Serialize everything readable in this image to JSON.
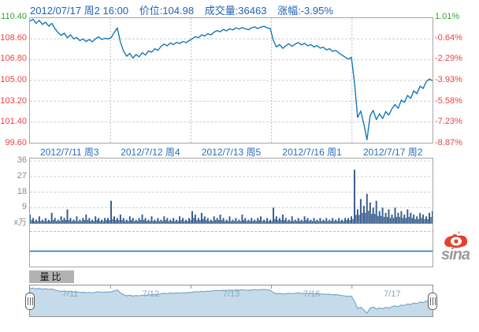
{
  "header": {
    "datetime": "2012/07/17 周2 16:00",
    "price": "价位:104.98",
    "volume": "成交量:36463",
    "change": "涨幅:-3.95%"
  },
  "main_chart": {
    "left_labels": [
      "110.40",
      "108.60",
      "106.80",
      "105.00",
      "103.20",
      "101.40",
      "99.60"
    ],
    "right_labels": [
      "1.01%",
      "-0.64%",
      "-2.29%",
      "-3.93%",
      "-5.58%",
      "-7.23%",
      "-8.87%"
    ],
    "x_labels": [
      "2012/7/11 周3",
      "2012/7/12 周4",
      "2012/7/13 周5",
      "2012/7/16 周1",
      "2012/7/17 周2"
    ]
  },
  "volume_chart": {
    "y_labels": [
      "36",
      "27",
      "18",
      "9"
    ],
    "y_values": [
      36,
      27,
      18,
      9
    ],
    "unit_label": "x万"
  },
  "tab": {
    "label": "量比"
  },
  "navigator": {
    "labels": [
      "7/11",
      "7/12",
      "7/13",
      "7/16",
      "7/17"
    ]
  },
  "logo": {
    "text": "sina"
  },
  "colors": {
    "header_text": "#1f62b8",
    "up_green": "#2ea82e",
    "down_red": "#e84444",
    "price_line": "#1478b8",
    "volume_bar": "#3a5f8e",
    "date_blue": "#2a6db8",
    "grid": "#cfcfcf",
    "nav_fill": "#c6dbea",
    "nav_line": "#76a9cc",
    "nav_label": "#8aa6bd",
    "tab_bg": "#b2b2b2"
  },
  "chart_data": [
    {
      "type": "line",
      "name": "price",
      "title": "2012/07/17 周2 16:00 价位:104.98 成交量:36463 涨幅:-3.95%",
      "x_categories": [
        "2012/7/11 周3",
        "2012/7/12 周4",
        "2012/7/13 周5",
        "2012/7/16 周1",
        "2012/7/17 周2"
      ],
      "points_per_day": 26,
      "ylim": [
        99.6,
        110.4
      ],
      "yticks_left": [
        110.4,
        108.6,
        106.8,
        105.0,
        103.2,
        101.4,
        99.6
      ],
      "yticks_right_pct": [
        1.01,
        -0.64,
        -2.29,
        -3.93,
        -5.58,
        -7.23,
        -8.87
      ],
      "last_price": 104.98,
      "change_pct": -3.95,
      "values": [
        110.15,
        110.3,
        109.95,
        110.2,
        109.85,
        110.05,
        109.7,
        109.95,
        109.5,
        109.15,
        108.9,
        109.1,
        108.7,
        108.95,
        108.6,
        108.72,
        108.45,
        108.6,
        108.38,
        108.55,
        108.35,
        108.6,
        108.78,
        108.55,
        108.65,
        108.6,
        108.7,
        109.15,
        109.55,
        108.3,
        107.55,
        107.1,
        107.35,
        106.95,
        107.25,
        107.05,
        107.4,
        107.2,
        107.55,
        107.45,
        107.75,
        107.6,
        107.95,
        108.15,
        108.0,
        108.25,
        108.1,
        108.3,
        108.2,
        108.38,
        108.28,
        108.45,
        108.6,
        108.8,
        108.7,
        108.95,
        108.85,
        109.05,
        108.95,
        109.18,
        109.32,
        109.22,
        109.42,
        109.3,
        109.48,
        109.38,
        109.55,
        109.45,
        109.58,
        109.48,
        109.4,
        109.55,
        109.65,
        109.5,
        109.62,
        109.7,
        109.55,
        109.5,
        108.45,
        107.9,
        108.12,
        107.78,
        108.0,
        108.18,
        107.95,
        108.15,
        108.28,
        108.08,
        108.22,
        108.0,
        108.12,
        107.9,
        108.02,
        107.8,
        107.88,
        107.65,
        107.75,
        107.52,
        107.6,
        107.38,
        107.2,
        107.02,
        106.85,
        107.0,
        104.8,
        101.8,
        102.35,
        101.2,
        99.85,
        101.95,
        102.4,
        101.6,
        102.1,
        101.7,
        102.3,
        102.0,
        102.55,
        102.9,
        102.58,
        103.3,
        103.1,
        103.7,
        103.45,
        104.1,
        103.85,
        104.5,
        104.3,
        104.9,
        105.12,
        104.98
      ]
    },
    {
      "type": "bar",
      "name": "volume",
      "unit": "万",
      "ylim": [
        0,
        36
      ],
      "yticks": [
        36,
        27,
        18,
        9
      ],
      "total_shown": 36463,
      "values": [
        5,
        3,
        2,
        4,
        2,
        3,
        2,
        6,
        3,
        2,
        4,
        3,
        8,
        3,
        2,
        4,
        2,
        3,
        5,
        3,
        2,
        4,
        3,
        2,
        3,
        3,
        13,
        4,
        3,
        5,
        3,
        2,
        4,
        3,
        2,
        3,
        5,
        3,
        2,
        4,
        2,
        3,
        2,
        4,
        3,
        2,
        3,
        2,
        4,
        3,
        2,
        3,
        7,
        5,
        3,
        6,
        4,
        3,
        2,
        4,
        3,
        5,
        3,
        2,
        4,
        2,
        3,
        2,
        5,
        3,
        2,
        3,
        2,
        3,
        4,
        2,
        3,
        2,
        9,
        4,
        3,
        5,
        3,
        2,
        4,
        2,
        3,
        2,
        4,
        3,
        2,
        3,
        2,
        3,
        2,
        3,
        2,
        3,
        2,
        3,
        2,
        3,
        3,
        4,
        31,
        8,
        14,
        10,
        17,
        12,
        9,
        13,
        7,
        9,
        6,
        8,
        5,
        9,
        6,
        7,
        5,
        8,
        6,
        5,
        4,
        6,
        5,
        4,
        6,
        7
      ]
    },
    {
      "type": "line",
      "name": "量比",
      "values": [
        1,
        1
      ],
      "note": "flat horizontal line"
    },
    {
      "type": "area",
      "name": "navigator",
      "x_labels": [
        "7/11",
        "7/12",
        "7/13",
        "7/16",
        "7/17"
      ],
      "source_series": "price"
    }
  ]
}
